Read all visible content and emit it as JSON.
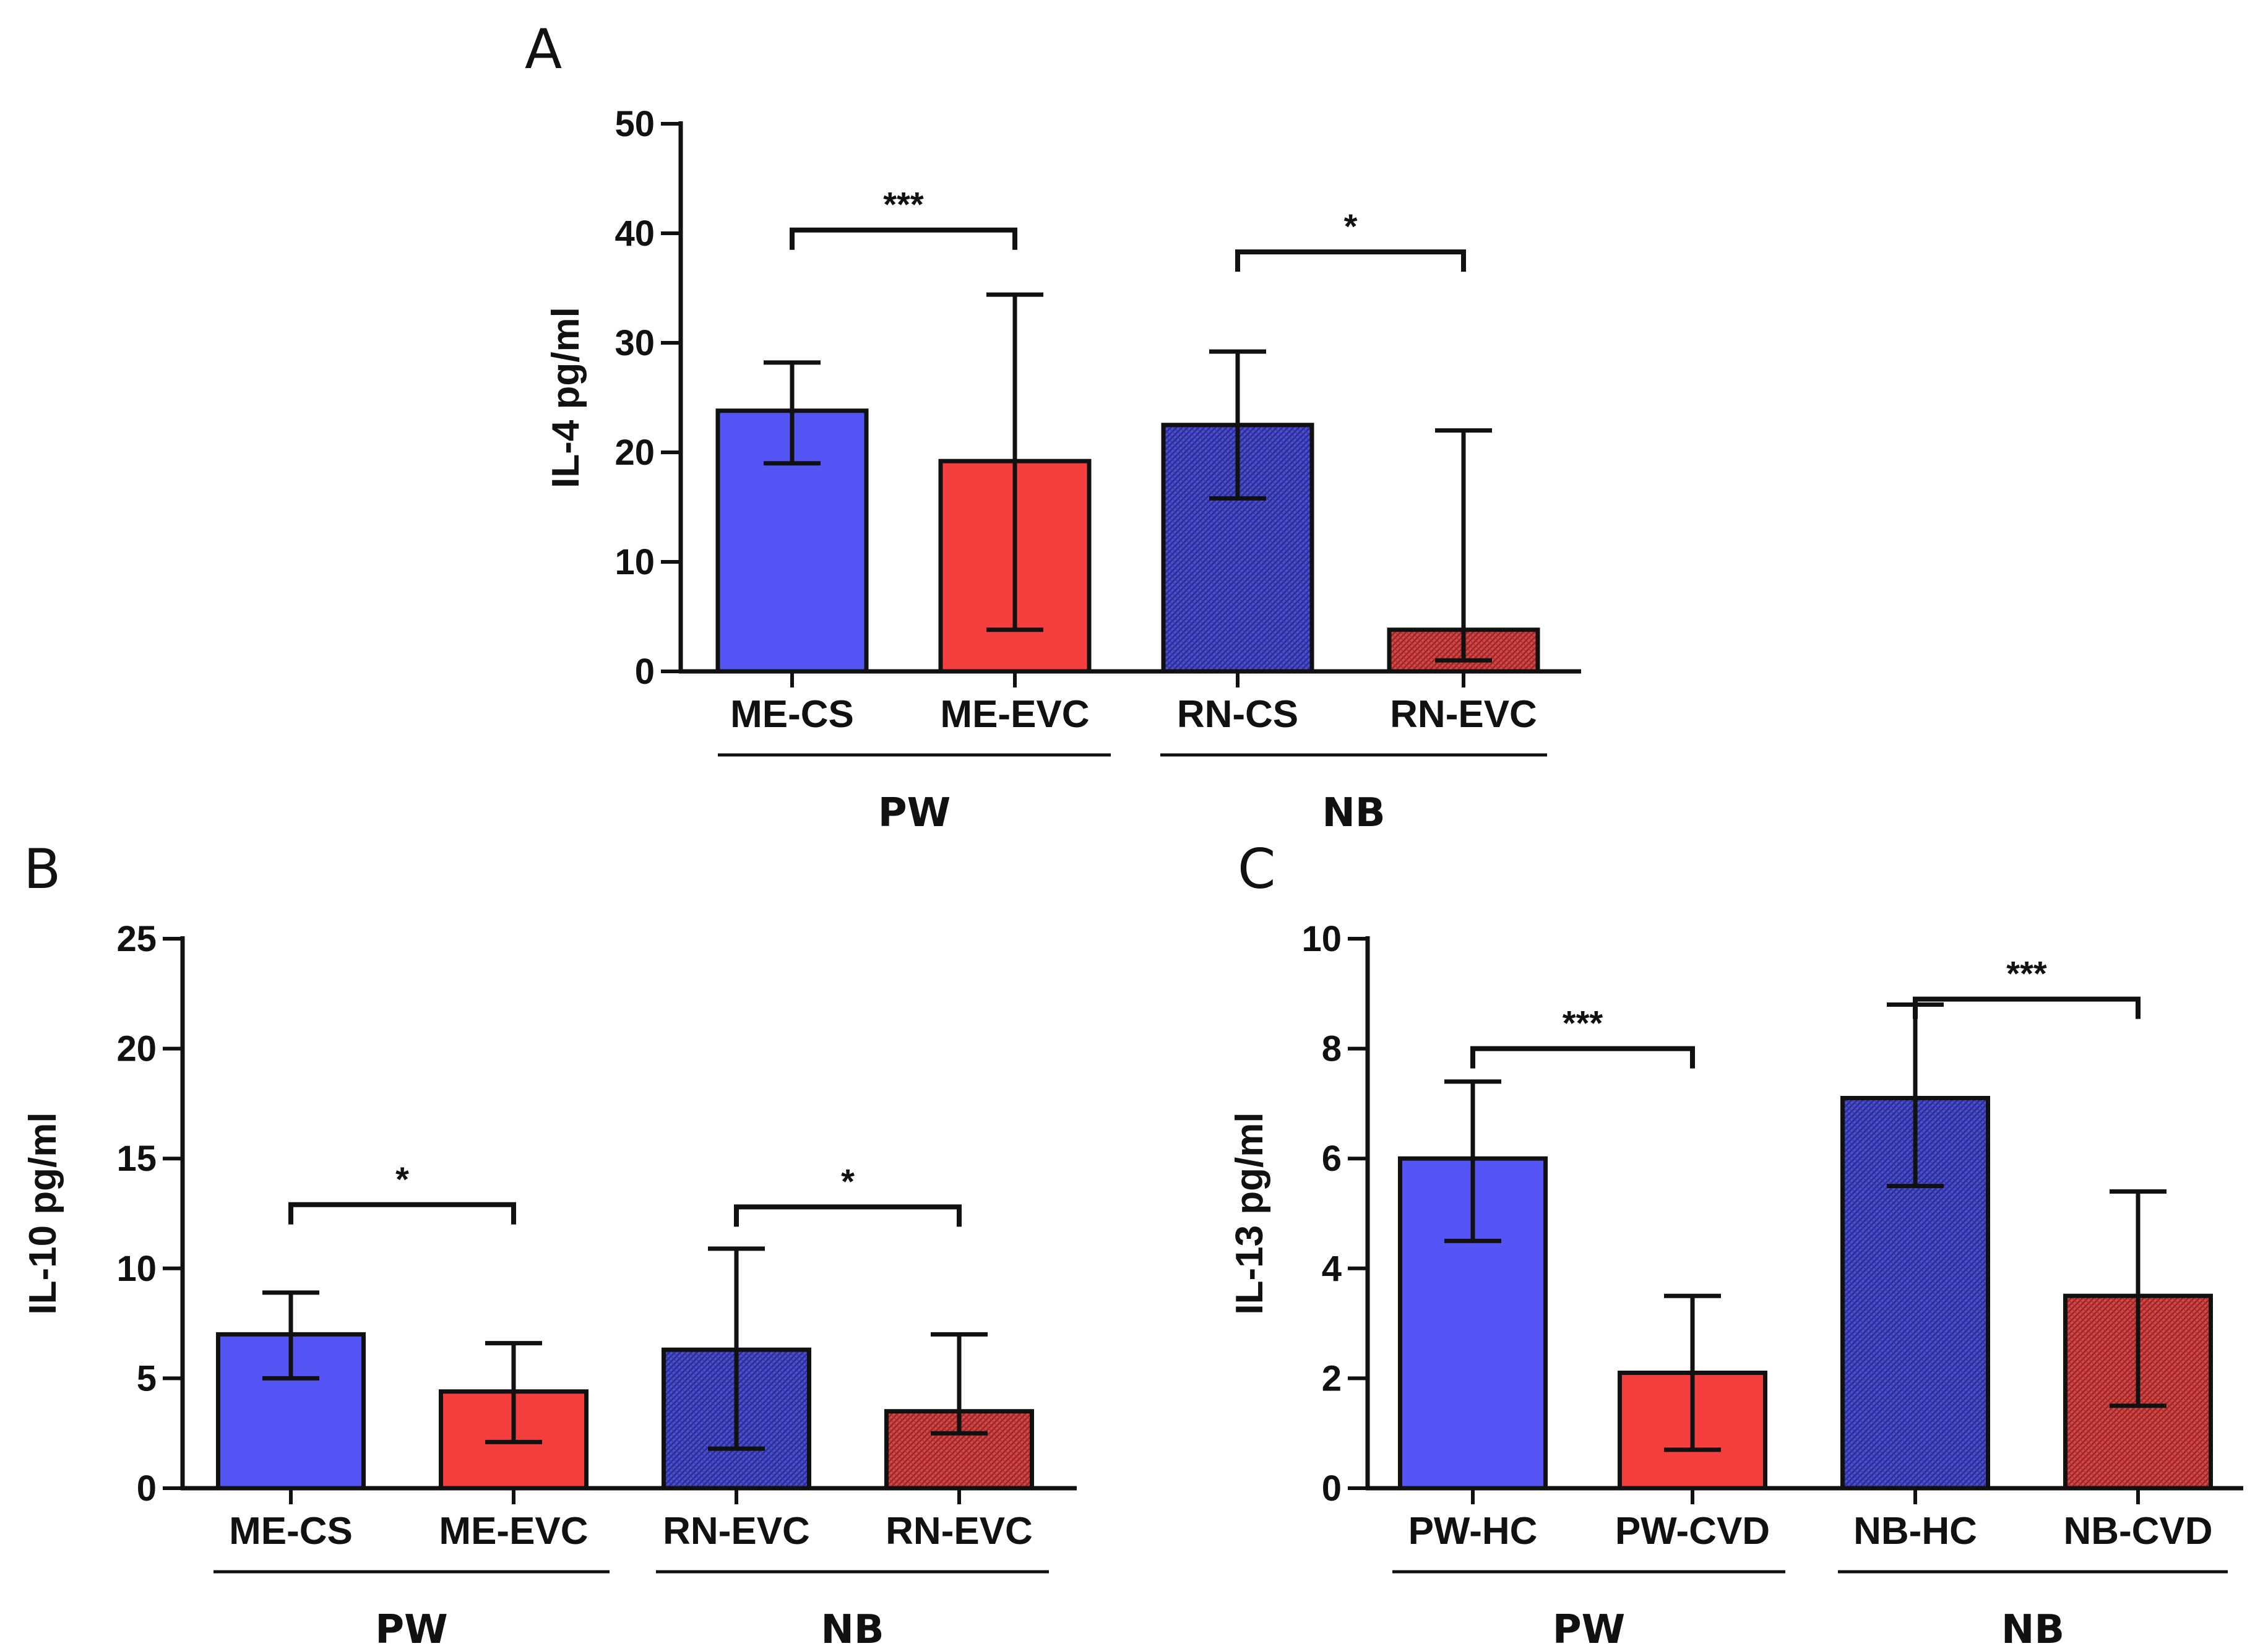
{
  "colors": {
    "blue": "#5555f5",
    "red": "#f53f3f",
    "blue_hatch": "#3c40b8",
    "red_hatch": "#c23838",
    "ink": "#111111"
  },
  "chart_data": [
    {
      "panel": "A",
      "type": "bar",
      "ylabel": "IL-4 pg/ml",
      "ylim": [
        0,
        50
      ],
      "yticks": [
        0,
        10,
        20,
        30,
        40,
        50
      ],
      "categories": [
        "ME-CS",
        "ME-EVC",
        "RN-CS",
        "RN-EVC"
      ],
      "values": [
        23.8,
        19.2,
        22.5,
        3.8
      ],
      "error_upper": [
        28.2,
        34.4,
        29.2,
        22.0
      ],
      "error_lower": [
        19.0,
        3.8,
        15.8,
        1.0
      ],
      "fills": [
        "blue",
        "red",
        "blue_hatch",
        "red_hatch"
      ],
      "groups": [
        {
          "label": "PW",
          "categories": [
            0,
            1
          ]
        },
        {
          "label": "NB",
          "categories": [
            2,
            3
          ]
        }
      ],
      "significance": [
        {
          "from": 0,
          "to": 1,
          "label": "***",
          "y": 40.3
        },
        {
          "from": 2,
          "to": 3,
          "label": "*",
          "y": 38.3
        }
      ]
    },
    {
      "panel": "B",
      "type": "bar",
      "ylabel": "IL-10 pg/ml",
      "ylim": [
        0,
        25
      ],
      "yticks": [
        0,
        5,
        10,
        15,
        20,
        25
      ],
      "categories": [
        "ME-CS",
        "ME-EVC",
        "RN-EVC",
        "RN-EVC"
      ],
      "values": [
        7.0,
        4.4,
        6.3,
        3.5
      ],
      "error_upper": [
        8.9,
        6.6,
        10.9,
        7.0
      ],
      "error_lower": [
        5.0,
        2.1,
        1.8,
        2.5
      ],
      "fills": [
        "blue",
        "red",
        "blue_hatch",
        "red_hatch"
      ],
      "groups": [
        {
          "label": "PW",
          "categories": [
            0,
            1
          ]
        },
        {
          "label": "NB",
          "categories": [
            2,
            3
          ]
        }
      ],
      "significance": [
        {
          "from": 0,
          "to": 1,
          "label": "*",
          "y": 12.9
        },
        {
          "from": 2,
          "to": 3,
          "label": "*",
          "y": 12.8
        }
      ]
    },
    {
      "panel": "C",
      "type": "bar",
      "ylabel": "IL-13 pg/ml",
      "ylim": [
        0,
        10
      ],
      "yticks": [
        0,
        2,
        4,
        6,
        8,
        10
      ],
      "categories": [
        "PW-HC",
        "PW-CVD",
        "NB-HC",
        "NB-CVD"
      ],
      "values": [
        6.0,
        2.1,
        7.1,
        3.5
      ],
      "error_upper": [
        7.4,
        3.5,
        8.8,
        5.4
      ],
      "error_lower": [
        4.5,
        0.7,
        5.5,
        1.5
      ],
      "fills": [
        "blue",
        "red",
        "blue_hatch",
        "red_hatch"
      ],
      "groups": [
        {
          "label": "PW",
          "categories": [
            0,
            1
          ]
        },
        {
          "label": "NB",
          "categories": [
            2,
            3
          ]
        }
      ],
      "significance": [
        {
          "from": 0,
          "to": 1,
          "label": "***",
          "y": 8.0
        },
        {
          "from": 2,
          "to": 3,
          "label": "***",
          "y": 8.9
        }
      ]
    }
  ]
}
